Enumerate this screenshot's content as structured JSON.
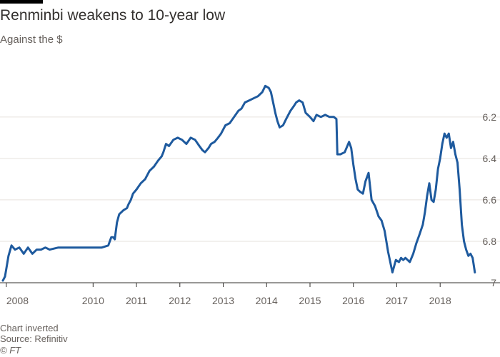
{
  "header": {
    "title": "Renminbi weakens to 10-year low",
    "subtitle": "Against the $"
  },
  "footer": {
    "note": "Chart inverted",
    "source": "Source: Refinitiv",
    "copyright": "© FT"
  },
  "colors": {
    "line": "#1e5a9e",
    "grid": "#e6e2de",
    "text": "#66605c",
    "accent_bar": "#000000"
  },
  "chart_data": {
    "type": "line",
    "title": "Renminbi weakens to 10-year low",
    "subtitle": "Against the $",
    "xlabel": "",
    "ylabel": "",
    "inverted_y": true,
    "ylim": [
      7.0,
      5.98
    ],
    "xlim": [
      2007.92,
      2018.82
    ],
    "y_axis_side": "right",
    "grid": true,
    "x_tick_labels": [
      "2008",
      "2010",
      "2011",
      "2012",
      "2013",
      "2014",
      "2015",
      "2016",
      "2017",
      "2018"
    ],
    "x_tick_positions": [
      2008.0,
      2010.0,
      2011.0,
      2012.0,
      2013.0,
      2014.0,
      2015.0,
      2016.0,
      2017.0,
      2018.0
    ],
    "y_ticks": [
      6.2,
      6.4,
      6.6,
      6.8,
      7.0
    ],
    "y_tick_labels": [
      "6.2",
      "6.4",
      "6.6",
      "6.8",
      "7"
    ],
    "series": [
      {
        "x": [
          2007.92,
          2007.97,
          2008.05,
          2008.12,
          2008.2,
          2008.3,
          2008.4,
          2008.5,
          2008.6,
          2008.7,
          2008.8,
          2008.9,
          2009.0,
          2009.2,
          2009.4,
          2009.6,
          2009.8,
          2010.0,
          2010.2,
          2010.35,
          2010.42,
          2010.46,
          2010.5,
          2010.55,
          2010.6,
          2010.7,
          2010.78,
          2010.82,
          2010.87,
          2010.92,
          2011.0,
          2011.1,
          2011.2,
          2011.3,
          2011.4,
          2011.5,
          2011.58,
          2011.62,
          2011.68,
          2011.75,
          2011.85,
          2011.95,
          2012.05,
          2012.15,
          2012.25,
          2012.35,
          2012.45,
          2012.52,
          2012.58,
          2012.66,
          2012.72,
          2012.8,
          2012.88,
          2012.95,
          2013.05,
          2013.15,
          2013.25,
          2013.35,
          2013.42,
          2013.5,
          2013.6,
          2013.7,
          2013.8,
          2013.9,
          2013.97,
          2014.05,
          2014.1,
          2014.15,
          2014.2,
          2014.25,
          2014.3,
          2014.38,
          2014.45,
          2014.55,
          2014.62,
          2014.68,
          2014.75,
          2014.83,
          2014.9,
          2015.0,
          2015.08,
          2015.15,
          2015.25,
          2015.35,
          2015.45,
          2015.55,
          2015.61,
          2015.63,
          2015.7,
          2015.8,
          2015.9,
          2015.95,
          2016.0,
          2016.05,
          2016.1,
          2016.15,
          2016.22,
          2016.28,
          2016.35,
          2016.42,
          2016.5,
          2016.58,
          2016.65,
          2016.72,
          2016.8,
          2016.9,
          2016.98,
          2017.05,
          2017.1,
          2017.15,
          2017.2,
          2017.3,
          2017.38,
          2017.45,
          2017.52,
          2017.6,
          2017.65,
          2017.7,
          2017.75,
          2017.8,
          2017.85,
          2017.9,
          2017.95,
          2018.0,
          2018.05,
          2018.1,
          2018.15,
          2018.2,
          2018.25,
          2018.3,
          2018.35,
          2018.4,
          2018.45,
          2018.5,
          2018.55,
          2018.6,
          2018.65,
          2018.7,
          2018.75,
          2018.8
        ],
        "values": [
          6.99,
          6.97,
          6.87,
          6.82,
          6.84,
          6.83,
          6.86,
          6.83,
          6.86,
          6.84,
          6.84,
          6.83,
          6.84,
          6.83,
          6.83,
          6.83,
          6.83,
          6.83,
          6.83,
          6.82,
          6.78,
          6.78,
          6.79,
          6.71,
          6.67,
          6.65,
          6.64,
          6.62,
          6.6,
          6.57,
          6.55,
          6.52,
          6.5,
          6.46,
          6.44,
          6.41,
          6.39,
          6.37,
          6.33,
          6.34,
          6.31,
          6.3,
          6.31,
          6.33,
          6.3,
          6.31,
          6.34,
          6.36,
          6.37,
          6.35,
          6.33,
          6.32,
          6.3,
          6.28,
          6.24,
          6.23,
          6.2,
          6.17,
          6.16,
          6.13,
          6.12,
          6.11,
          6.1,
          6.08,
          6.05,
          6.06,
          6.08,
          6.13,
          6.18,
          6.22,
          6.25,
          6.24,
          6.21,
          6.17,
          6.15,
          6.13,
          6.12,
          6.13,
          6.18,
          6.2,
          6.22,
          6.19,
          6.2,
          6.19,
          6.2,
          6.2,
          6.21,
          6.38,
          6.38,
          6.37,
          6.32,
          6.35,
          6.43,
          6.5,
          6.55,
          6.56,
          6.57,
          6.51,
          6.47,
          6.6,
          6.63,
          6.68,
          6.7,
          6.75,
          6.85,
          6.95,
          6.89,
          6.9,
          6.88,
          6.89,
          6.88,
          6.9,
          6.86,
          6.81,
          6.77,
          6.72,
          6.66,
          6.58,
          6.52,
          6.6,
          6.61,
          6.55,
          6.45,
          6.4,
          6.33,
          6.28,
          6.3,
          6.28,
          6.35,
          6.32,
          6.38,
          6.42,
          6.55,
          6.72,
          6.8,
          6.84,
          6.87,
          6.86,
          6.88,
          6.95
        ]
      }
    ]
  }
}
